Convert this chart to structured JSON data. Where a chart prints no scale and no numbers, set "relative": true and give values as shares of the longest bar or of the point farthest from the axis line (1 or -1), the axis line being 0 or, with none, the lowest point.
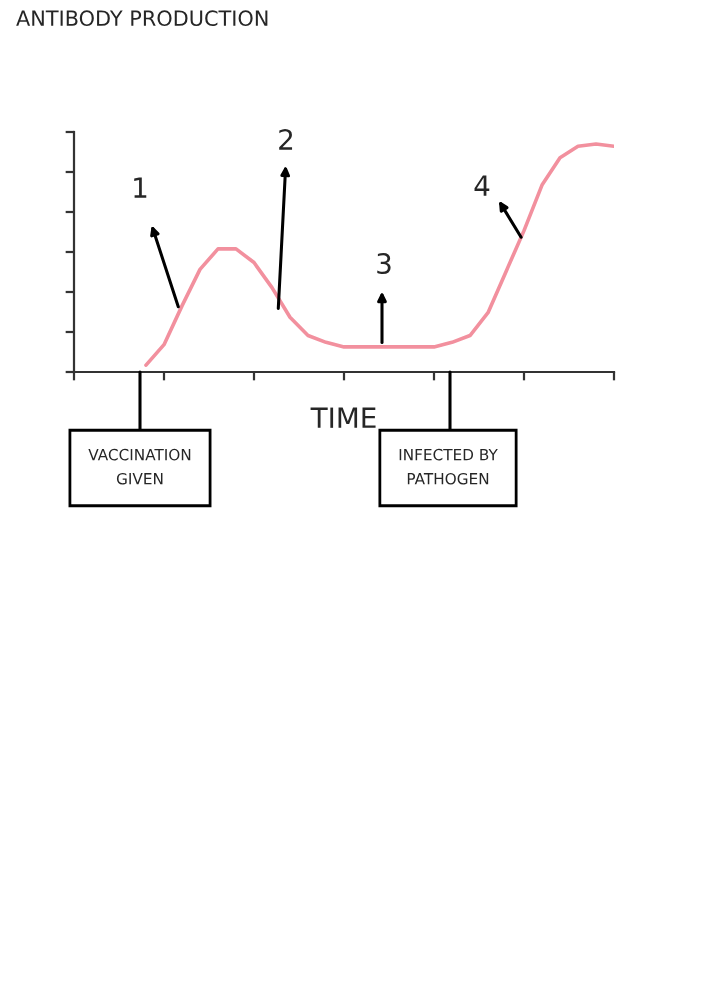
{
  "chart_data": {
    "type": "line",
    "relative": true,
    "title": "ANTIBODY PRODUCTION",
    "xlabel": "TIME",
    "categories": [
      null,
      null,
      null,
      null,
      null,
      null,
      null,
      null,
      null,
      null,
      null,
      null,
      null,
      null,
      null,
      null,
      null,
      null,
      null,
      null,
      null,
      null,
      null,
      null,
      null,
      null,
      null,
      null,
      null,
      null,
      null
    ],
    "series": [
      {
        "color": "#f2909e",
        "values": [
          null,
          null,
          null,
          null,
          0.03,
          0.12,
          0.29,
          0.45,
          0.54,
          0.54,
          0.48,
          0.37,
          0.24,
          0.16,
          0.13,
          0.11,
          0.11,
          0.11,
          0.11,
          0.11,
          0.11,
          0.13,
          0.16,
          0.26,
          0.44,
          0.62,
          0.82,
          0.94,
          0.99,
          1,
          0.99
        ]
      }
    ],
    "annotations": [
      "1",
      "2",
      "3",
      "4",
      "VACCINATION\nGIVEN",
      "INFECTED BY\nPATHOGEN"
    ],
    "grid": false,
    "legend": false,
    "marker": "none",
    "line_style": "solid"
  }
}
